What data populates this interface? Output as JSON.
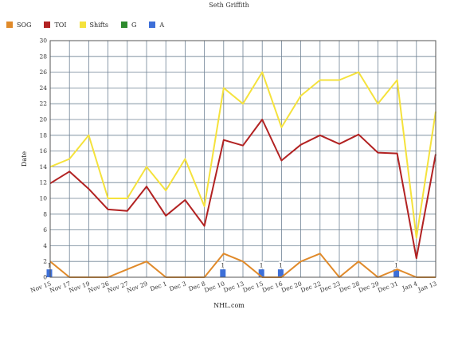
{
  "chart_data": {
    "type": "line",
    "title": "Seth Griffith",
    "xlabel": "NHL.com",
    "ylabel": "Date",
    "ylim": [
      0,
      30
    ],
    "yticks": [
      0,
      2,
      4,
      6,
      8,
      10,
      12,
      14,
      16,
      18,
      20,
      22,
      24,
      26,
      28,
      30
    ],
    "grid": true,
    "legend_position": "top-left",
    "categories": [
      "Nov 15",
      "Nov 17",
      "Nov 19",
      "Nov 26",
      "Nov 27",
      "Nov 29",
      "Dec 1",
      "Dec 3",
      "Dec 8",
      "Dec 10",
      "Dec 13",
      "Dec 15",
      "Dec 16",
      "Dec 20",
      "Dec 22",
      "Dec 23",
      "Dec 28",
      "Dec 29",
      "Dec 31",
      "Jan 4",
      "Jan 13"
    ],
    "series": [
      {
        "name": "SOG",
        "kind": "line",
        "color": "#e08a2a",
        "values": [
          2,
          0,
          0,
          0,
          1,
          2,
          0,
          0,
          0,
          3,
          2,
          0,
          0,
          2,
          3,
          0,
          2,
          0,
          1,
          0,
          0
        ]
      },
      {
        "name": "TOI",
        "kind": "line",
        "color": "#b22222",
        "values": [
          11.9,
          13.4,
          11.2,
          8.6,
          8.4,
          11.5,
          7.8,
          9.8,
          6.5,
          17.4,
          16.7,
          20.0,
          14.8,
          16.8,
          18.0,
          16.9,
          18.1,
          15.8,
          15.7,
          2.4,
          15.6
        ]
      },
      {
        "name": "Shifts",
        "kind": "line",
        "color": "#f5e23c",
        "values": [
          14,
          15,
          18,
          10,
          10,
          14,
          11,
          15,
          9,
          24,
          22,
          26,
          19,
          23,
          25,
          25,
          26,
          22,
          25,
          5,
          21
        ]
      },
      {
        "name": "G",
        "kind": "bar",
        "color": "#2e8b2e",
        "values": [
          0,
          0,
          0,
          0,
          0,
          0,
          0,
          0,
          0,
          0,
          0,
          0,
          0,
          0,
          0,
          0,
          0,
          0,
          0,
          0,
          0
        ]
      },
      {
        "name": "A",
        "kind": "bar",
        "color": "#3d6fd8",
        "values": [
          1,
          0,
          0,
          0,
          0,
          0,
          0,
          0,
          0,
          1,
          0,
          1,
          1,
          0,
          0,
          0,
          0,
          0,
          1,
          0,
          0
        ]
      }
    ]
  }
}
